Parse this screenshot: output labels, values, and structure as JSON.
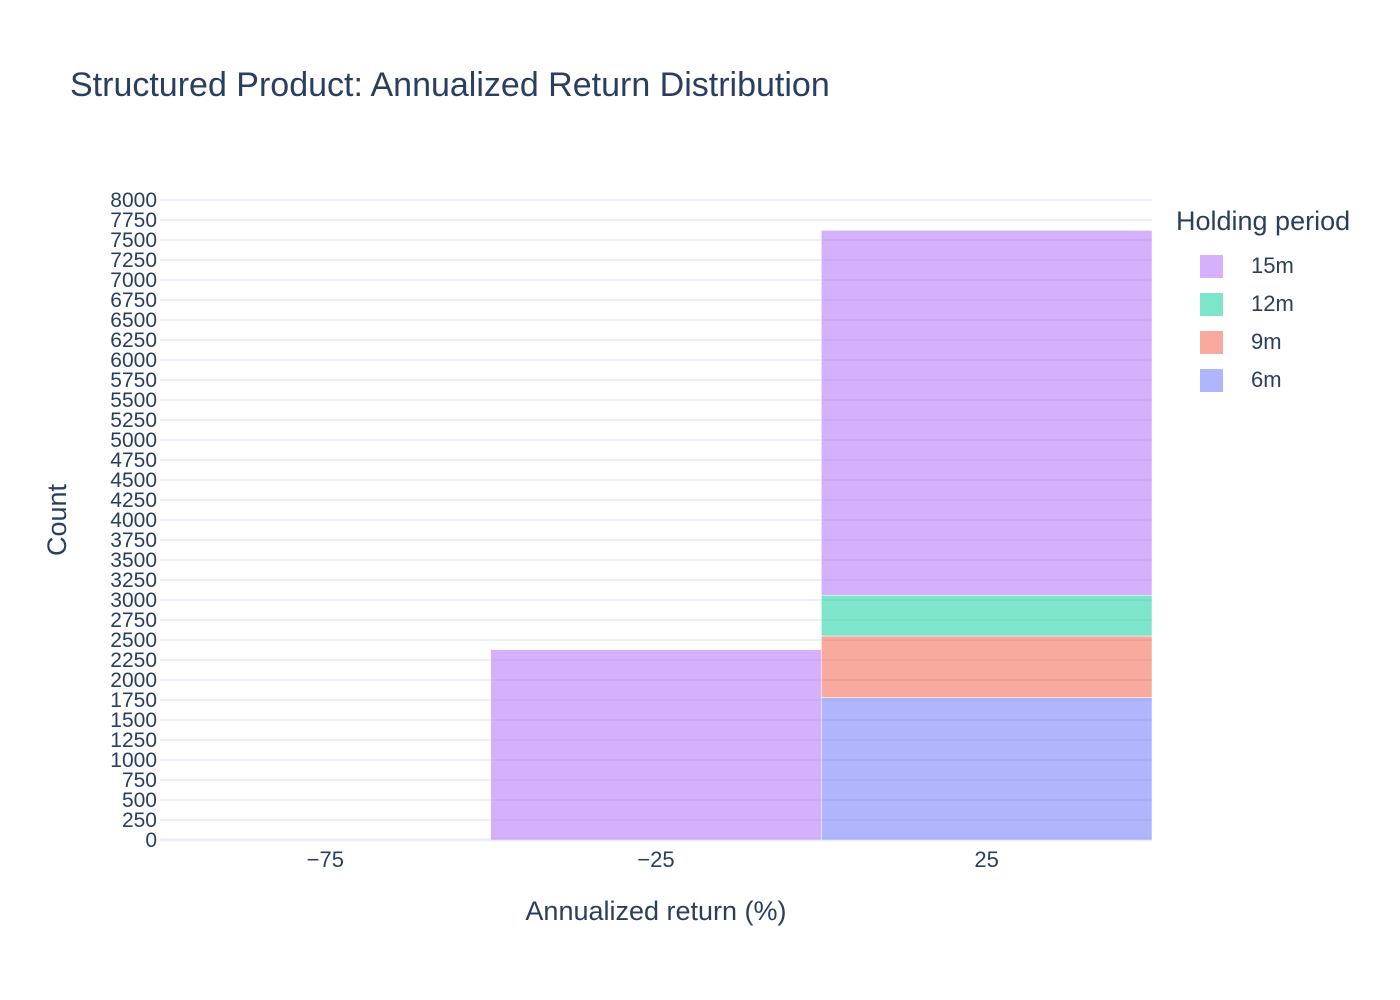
{
  "chart_data": {
    "type": "bar",
    "title": "Structured Product: Annualized Return Distribution",
    "xlabel": "Annualized return (%)",
    "ylabel": "Count",
    "barmode": "stack",
    "bin_width": 50,
    "x_bin_centers": [
      -75,
      -25,
      25
    ],
    "xlim": [
      -100,
      50
    ],
    "x_ticks": [
      -75,
      -25,
      25
    ],
    "x_tick_labels": [
      "−75",
      "−25",
      "25"
    ],
    "ylim": [
      0,
      8000
    ],
    "y_tick_step": 250,
    "grid": true,
    "legend": {
      "title": "Holding period",
      "placement": "top-right-outside"
    },
    "series": [
      {
        "name": "6m",
        "color": "#636efa",
        "values": [
          0,
          0,
          1780
        ]
      },
      {
        "name": "9m",
        "color": "#ef553b",
        "values": [
          0,
          0,
          770
        ]
      },
      {
        "name": "12m",
        "color": "#00cc96",
        "values": [
          0,
          0,
          510
        ]
      },
      {
        "name": "15m",
        "color": "#ab63fa",
        "values": [
          10,
          2380,
          4560
        ]
      }
    ]
  }
}
